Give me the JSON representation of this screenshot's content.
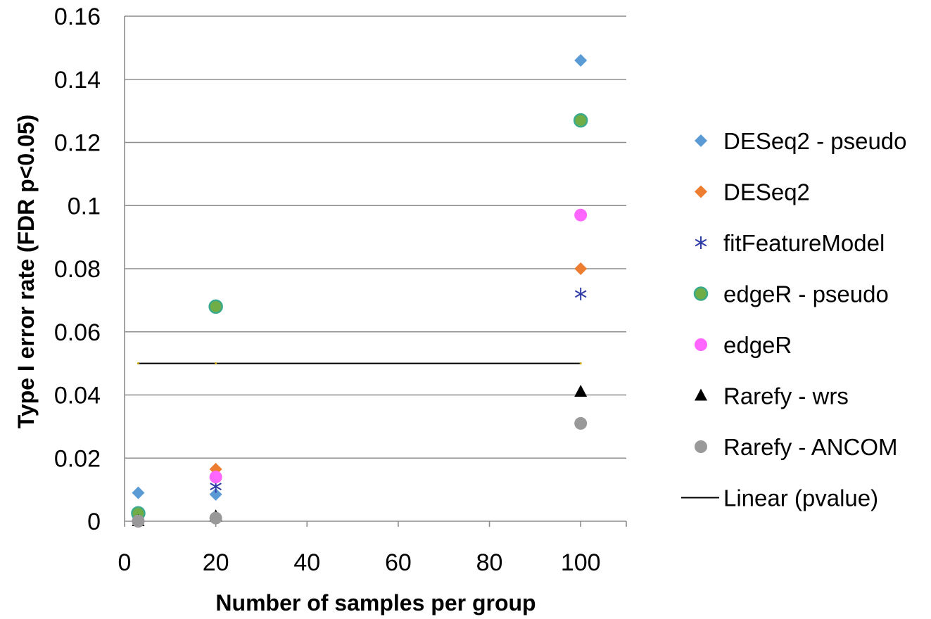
{
  "chart_data": {
    "type": "scatter",
    "title": "",
    "xlabel": "Number of samples per group",
    "ylabel": "Type I error rate (FDR p<0.05)",
    "xlim": [
      0,
      110
    ],
    "ylim": [
      0,
      0.16
    ],
    "x_ticks": [
      "0",
      "20",
      "40",
      "60",
      "80",
      "100"
    ],
    "y_ticks": [
      "0",
      "0.02",
      "0.04",
      "0.06",
      "0.08",
      "0.1",
      "0.12",
      "0.14",
      "0.16"
    ],
    "grid": "horizontal",
    "legend_position": "right",
    "series": [
      {
        "name": "DESeq2 - pseudo",
        "marker": "diamond",
        "color": "#5B9BD5",
        "points": [
          {
            "x": 3,
            "y": 0.009
          },
          {
            "x": 20,
            "y": 0.0085
          },
          {
            "x": 100,
            "y": 0.146
          }
        ]
      },
      {
        "name": "DESeq2",
        "marker": "diamond",
        "color": "#ED7D31",
        "points": [
          {
            "x": 3,
            "y": 0.0
          },
          {
            "x": 20,
            "y": 0.0165
          },
          {
            "x": 100,
            "y": 0.08
          }
        ]
      },
      {
        "name": "fitFeatureModel",
        "marker": "asterisk",
        "color": "#2E3AA5",
        "points": [
          {
            "x": 3,
            "y": 0.0
          },
          {
            "x": 20,
            "y": 0.011
          },
          {
            "x": 100,
            "y": 0.072
          }
        ]
      },
      {
        "name": "edgeR - pseudo",
        "marker": "circle",
        "color": "#70AD47",
        "stroke": "#3BAA8C",
        "points": [
          {
            "x": 3,
            "y": 0.0025
          },
          {
            "x": 20,
            "y": 0.068
          },
          {
            "x": 100,
            "y": 0.127
          }
        ]
      },
      {
        "name": "edgeR",
        "marker": "circle",
        "color": "#FF66FF",
        "points": [
          {
            "x": 3,
            "y": 0.0
          },
          {
            "x": 20,
            "y": 0.014
          },
          {
            "x": 100,
            "y": 0.097
          }
        ]
      },
      {
        "name": "Rarefy - wrs",
        "marker": "triangle",
        "color": "#000000",
        "points": [
          {
            "x": 3,
            "y": 0.0
          },
          {
            "x": 20,
            "y": 0.0015
          },
          {
            "x": 100,
            "y": 0.041
          }
        ]
      },
      {
        "name": "Rarefy - ANCOM",
        "marker": "circle",
        "color": "#999999",
        "points": [
          {
            "x": 3,
            "y": 0.0
          },
          {
            "x": 20,
            "y": 0.001
          },
          {
            "x": 100,
            "y": 0.031
          }
        ]
      }
    ],
    "trendline": {
      "name": "Linear (pvalue)",
      "color": "#000000",
      "points": [
        {
          "x": 3,
          "y": 0.05
        },
        {
          "x": 20,
          "y": 0.05
        },
        {
          "x": 100,
          "y": 0.05
        }
      ]
    }
  }
}
